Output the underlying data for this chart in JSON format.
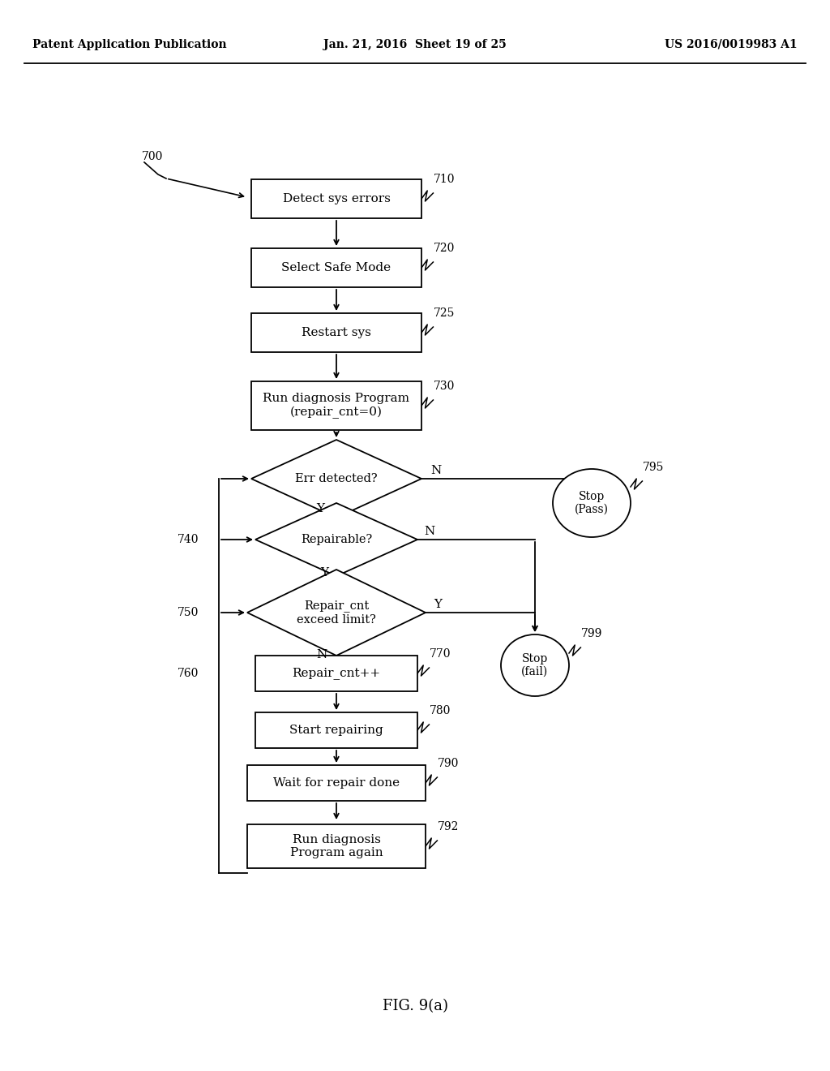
{
  "title_left": "Patent Application Publication",
  "title_mid": "Jan. 21, 2016  Sheet 19 of 25",
  "title_right": "US 2016/0019983 A1",
  "fig_label": "FIG. 9(a)",
  "background_color": "#ffffff"
}
